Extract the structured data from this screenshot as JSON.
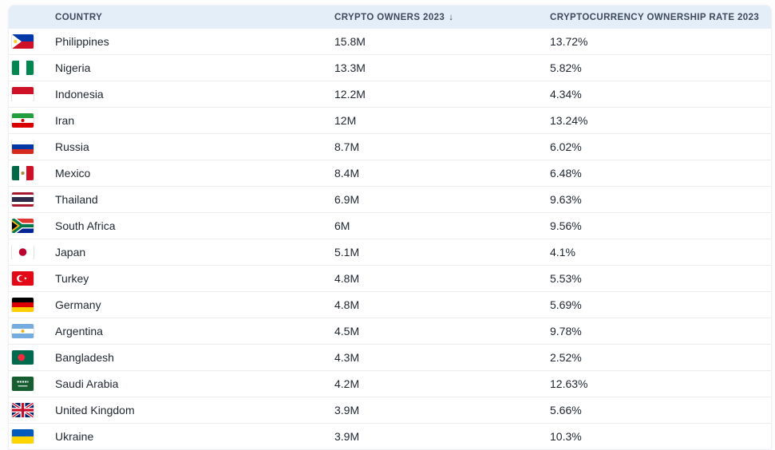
{
  "table": {
    "columns": [
      {
        "label": "COUNTRY"
      },
      {
        "label": "CRYPTO OWNERS 2023",
        "sort_indicator": "↓",
        "sort_direction": "descending"
      },
      {
        "label": "CRYPTOCURRENCY OWNERSHIP RATE 2023"
      }
    ],
    "rows": [
      {
        "country": "Philippines",
        "flag": "philippines-flag",
        "owners": "15.8M",
        "rate": "13.72%"
      },
      {
        "country": "Nigeria",
        "flag": "nigeria-flag",
        "owners": "13.3M",
        "rate": "5.82%"
      },
      {
        "country": "Indonesia",
        "flag": "indonesia-flag",
        "owners": "12.2M",
        "rate": "4.34%"
      },
      {
        "country": "Iran",
        "flag": "iran-flag",
        "owners": "12M",
        "rate": "13.24%"
      },
      {
        "country": "Russia",
        "flag": "russia-flag",
        "owners": "8.7M",
        "rate": "6.02%"
      },
      {
        "country": "Mexico",
        "flag": "mexico-flag",
        "owners": "8.4M",
        "rate": "6.48%"
      },
      {
        "country": "Thailand",
        "flag": "thailand-flag",
        "owners": "6.9M",
        "rate": "9.63%"
      },
      {
        "country": "South Africa",
        "flag": "south-africa-flag",
        "owners": "6M",
        "rate": "9.56%"
      },
      {
        "country": "Japan",
        "flag": "japan-flag",
        "owners": "5.1M",
        "rate": "4.1%"
      },
      {
        "country": "Turkey",
        "flag": "turkey-flag",
        "owners": "4.8M",
        "rate": "5.53%"
      },
      {
        "country": "Germany",
        "flag": "germany-flag",
        "owners": "4.8M",
        "rate": "5.69%"
      },
      {
        "country": "Argentina",
        "flag": "argentina-flag",
        "owners": "4.5M",
        "rate": "9.78%"
      },
      {
        "country": "Bangladesh",
        "flag": "bangladesh-flag",
        "owners": "4.3M",
        "rate": "2.52%"
      },
      {
        "country": "Saudi Arabia",
        "flag": "saudi-arabia-flag",
        "owners": "4.2M",
        "rate": "12.63%"
      },
      {
        "country": "United Kingdom",
        "flag": "united-kingdom-flag",
        "owners": "3.9M",
        "rate": "5.66%"
      },
      {
        "country": "Ukraine",
        "flag": "ukraine-flag",
        "owners": "3.9M",
        "rate": "10.3%"
      }
    ]
  },
  "colors": {
    "header_bg": "#e4eef9",
    "header_text": "#3e4a5b",
    "row_text": "#1f2630",
    "row_border": "#ecedf1",
    "page_bg": "#fdfdfe"
  },
  "chart_data": {
    "type": "table",
    "title": "",
    "columns": [
      "COUNTRY",
      "CRYPTO OWNERS 2023",
      "CRYPTOCURRENCY OWNERSHIP RATE 2023"
    ],
    "sort": {
      "column": "CRYPTO OWNERS 2023",
      "direction": "desc"
    },
    "categories": [
      "Philippines",
      "Nigeria",
      "Indonesia",
      "Iran",
      "Russia",
      "Mexico",
      "Thailand",
      "South Africa",
      "Japan",
      "Turkey",
      "Germany",
      "Argentina",
      "Bangladesh",
      "Saudi Arabia",
      "United Kingdom",
      "Ukraine"
    ],
    "series": [
      {
        "name": "Crypto owners 2023 (millions)",
        "values": [
          15.8,
          13.3,
          12.2,
          12,
          8.7,
          8.4,
          6.9,
          6,
          5.1,
          4.8,
          4.8,
          4.5,
          4.3,
          4.2,
          3.9,
          3.9
        ]
      },
      {
        "name": "Cryptocurrency ownership rate 2023 (%)",
        "values": [
          13.72,
          5.82,
          4.34,
          13.24,
          6.02,
          6.48,
          9.63,
          9.56,
          4.1,
          5.53,
          5.69,
          9.78,
          2.52,
          12.63,
          5.66,
          10.3
        ]
      }
    ]
  }
}
